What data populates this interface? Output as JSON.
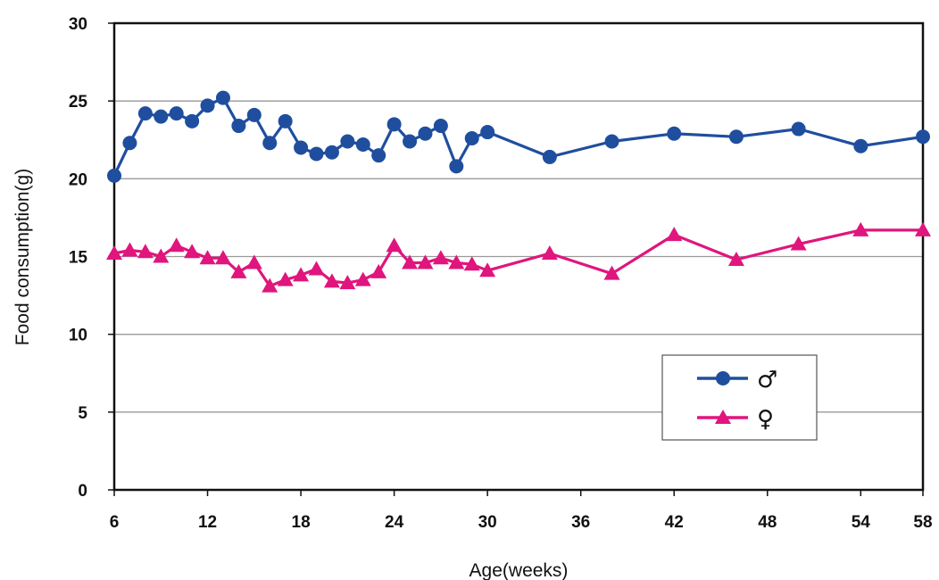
{
  "chart_data": {
    "type": "line",
    "title": "",
    "xlabel": "Age(weeks)",
    "ylabel": "Food consumption(g)",
    "xlim": [
      6,
      58
    ],
    "ylim": [
      0,
      30
    ],
    "x_ticks": [
      "6",
      "12",
      "18",
      "24",
      "30",
      "36",
      "42",
      "48",
      "54",
      "58"
    ],
    "y_ticks": [
      "0",
      "5",
      "10",
      "15",
      "20",
      "25",
      "30"
    ],
    "grid": "horizontal",
    "legend_position": "bottom-right",
    "series": [
      {
        "name": "♂",
        "color": "#1f4e9e",
        "marker": "circle",
        "points": [
          [
            6,
            20.2
          ],
          [
            7,
            22.3
          ],
          [
            8,
            24.2
          ],
          [
            9,
            24.0
          ],
          [
            10,
            24.2
          ],
          [
            11,
            23.7
          ],
          [
            12,
            24.7
          ],
          [
            13,
            25.2
          ],
          [
            14,
            23.4
          ],
          [
            15,
            24.1
          ],
          [
            16,
            22.3
          ],
          [
            17,
            23.7
          ],
          [
            18,
            22.0
          ],
          [
            19,
            21.6
          ],
          [
            20,
            21.7
          ],
          [
            21,
            22.4
          ],
          [
            22,
            22.2
          ],
          [
            23,
            21.5
          ],
          [
            24,
            23.5
          ],
          [
            25,
            22.4
          ],
          [
            26,
            22.9
          ],
          [
            27,
            23.4
          ],
          [
            28,
            20.8
          ],
          [
            29,
            22.6
          ],
          [
            30,
            23.0
          ],
          [
            34,
            21.4
          ],
          [
            38,
            22.4
          ],
          [
            42,
            22.9
          ],
          [
            46,
            22.7
          ],
          [
            50,
            23.2
          ],
          [
            54,
            22.1
          ],
          [
            58,
            22.7
          ]
        ]
      },
      {
        "name": "♀",
        "color": "#e0157d",
        "marker": "triangle",
        "points": [
          [
            6,
            15.2
          ],
          [
            7,
            15.4
          ],
          [
            8,
            15.3
          ],
          [
            9,
            15.0
          ],
          [
            10,
            15.7
          ],
          [
            11,
            15.3
          ],
          [
            12,
            14.9
          ],
          [
            13,
            14.9
          ],
          [
            14,
            14.0
          ],
          [
            15,
            14.6
          ],
          [
            16,
            13.1
          ],
          [
            17,
            13.5
          ],
          [
            18,
            13.8
          ],
          [
            19,
            14.2
          ],
          [
            20,
            13.4
          ],
          [
            21,
            13.3
          ],
          [
            22,
            13.5
          ],
          [
            23,
            14.0
          ],
          [
            24,
            15.7
          ],
          [
            25,
            14.6
          ],
          [
            26,
            14.6
          ],
          [
            27,
            14.9
          ],
          [
            28,
            14.6
          ],
          [
            29,
            14.5
          ],
          [
            30,
            14.1
          ],
          [
            34,
            15.2
          ],
          [
            38,
            13.9
          ],
          [
            42,
            16.4
          ],
          [
            46,
            14.8
          ],
          [
            50,
            15.8
          ],
          [
            54,
            16.7
          ],
          [
            58,
            16.7
          ]
        ]
      }
    ]
  }
}
